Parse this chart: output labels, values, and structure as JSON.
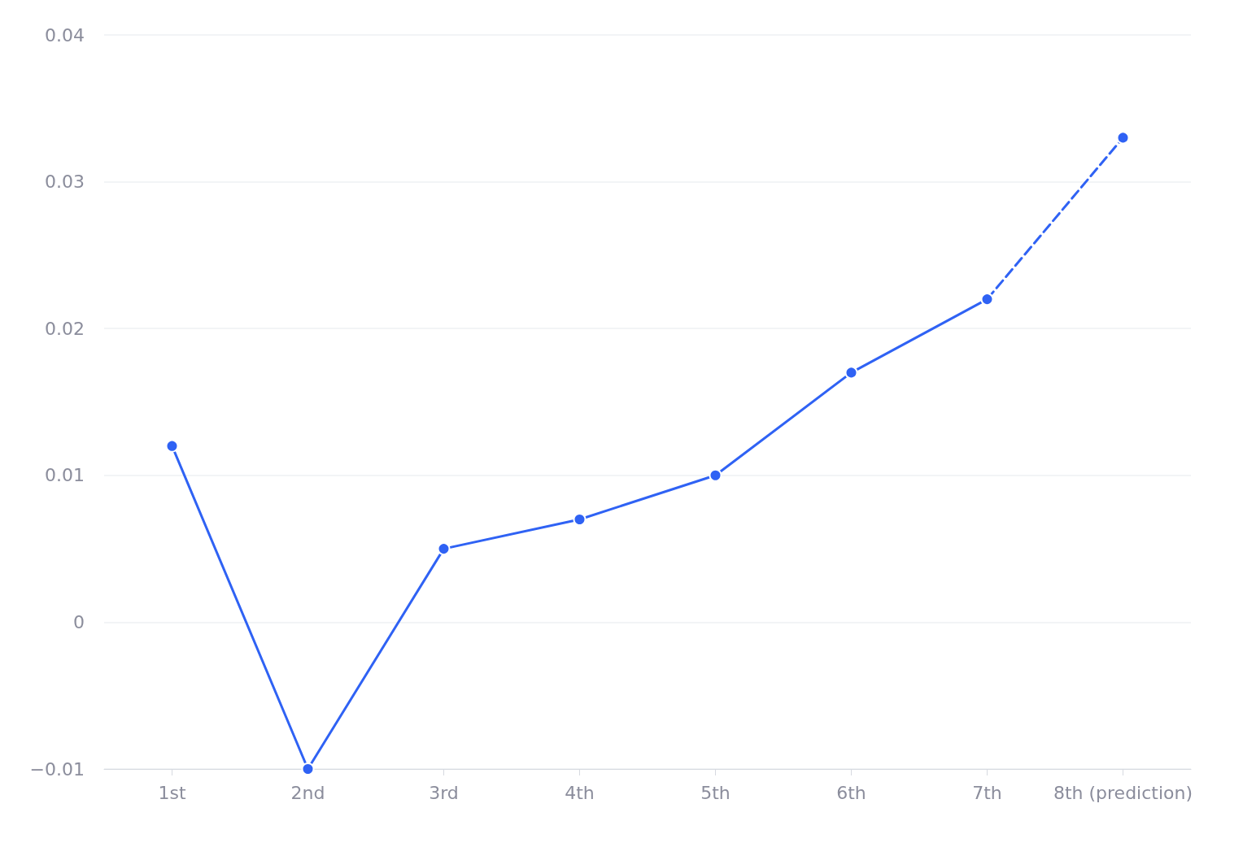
{
  "chart_data": {
    "type": "line",
    "categories": [
      "1st",
      "2nd",
      "3rd",
      "4th",
      "5th",
      "6th",
      "7th",
      "8th (prediction)"
    ],
    "series": [
      {
        "color": "#2f62f4",
        "line_style": "solid",
        "values": [
          0.012,
          -0.01,
          0.005,
          0.007,
          0.01,
          0.017,
          0.022,
          null
        ]
      },
      {
        "color": "#2f62f4",
        "line_style": "dashed",
        "values": [
          null,
          null,
          null,
          null,
          null,
          null,
          0.022,
          0.033
        ]
      }
    ],
    "ylim": [
      -0.01,
      0.04
    ],
    "yticks": [
      {
        "value": -0.01,
        "label": "−0.01"
      },
      0,
      0.01,
      0.02,
      0.03,
      0.04
    ],
    "grid": "y",
    "marker": "circle"
  }
}
